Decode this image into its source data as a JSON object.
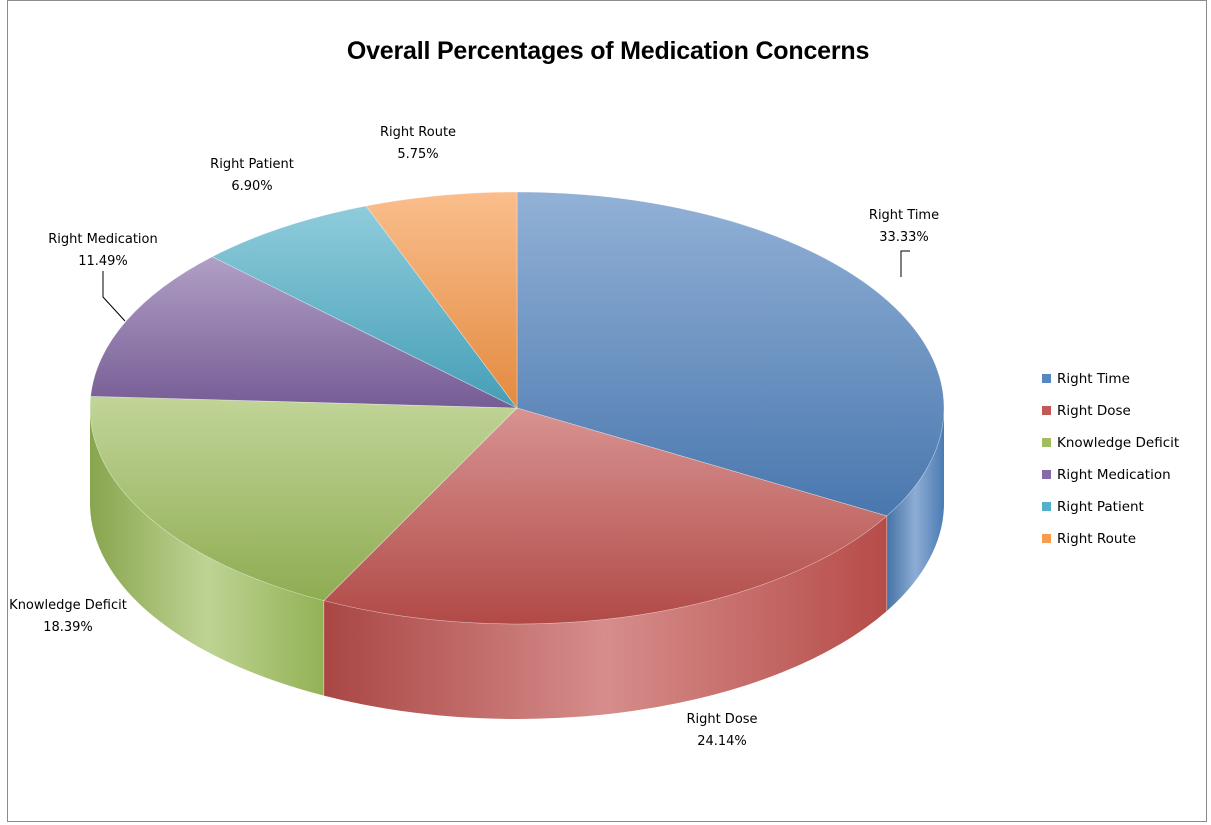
{
  "chart_data": {
    "type": "pie",
    "title": "Overall Percentages of Medication Concerns",
    "legend_position": "right",
    "slices": [
      {
        "label": "Right Time",
        "value": 33.33,
        "display": "33.33%",
        "color": "#4F81BD"
      },
      {
        "label": "Right Dose",
        "value": 24.14,
        "display": "24.14%",
        "color": "#C0504D"
      },
      {
        "label": "Knowledge Deficit",
        "value": 18.39,
        "display": "18.39%",
        "color": "#9BBB59"
      },
      {
        "label": "Right Medication",
        "value": 11.49,
        "display": "11.49%",
        "color": "#8064A2"
      },
      {
        "label": "Right Patient",
        "value": 6.9,
        "display": "6.90%",
        "color": "#4BACC6"
      },
      {
        "label": "Right Route",
        "value": 5.75,
        "display": "5.75%",
        "color": "#F79646"
      }
    ]
  }
}
